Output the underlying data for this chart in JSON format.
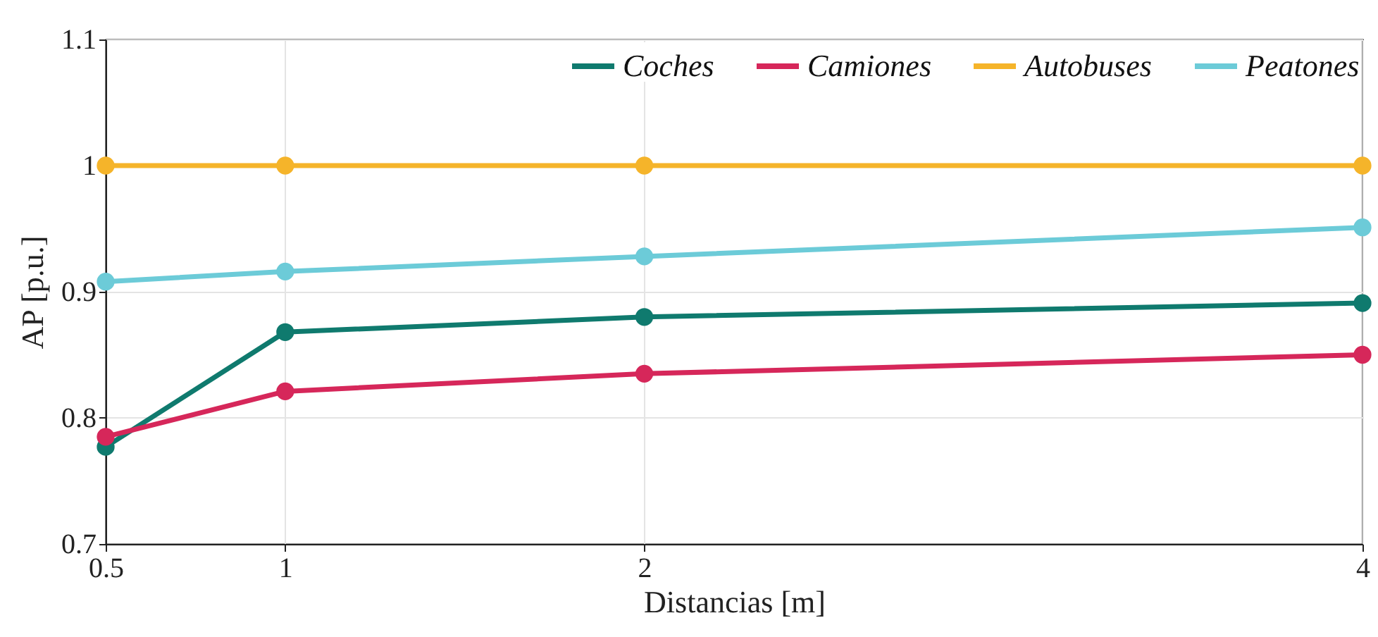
{
  "chart_data": {
    "type": "line",
    "xlabel": "Distancias [m]",
    "ylabel": "AP [p.u.]",
    "x": [
      0.5,
      1,
      2,
      4
    ],
    "series": [
      {
        "name": "Coches",
        "color": "#0f7a6e",
        "values": [
          0.777,
          0.868,
          0.88,
          0.891
        ]
      },
      {
        "name": "Camiones",
        "color": "#d6275a",
        "values": [
          0.785,
          0.821,
          0.835,
          0.85
        ]
      },
      {
        "name": "Autobuses",
        "color": "#f5b42a",
        "values": [
          1.0,
          1.0,
          1.0,
          1.0
        ]
      },
      {
        "name": "Peatones",
        "color": "#6ccbd8",
        "values": [
          0.908,
          0.916,
          0.928,
          0.951
        ]
      }
    ],
    "xlim": [
      0.5,
      4
    ],
    "xticks": [
      0.5,
      1,
      2,
      4
    ],
    "ylim": [
      0.7,
      1.1
    ],
    "yticks": [
      0.7,
      0.8,
      0.9,
      1,
      1.1
    ],
    "grid": true,
    "legend": "top right",
    "marker": "circle",
    "line_style": "solid"
  }
}
